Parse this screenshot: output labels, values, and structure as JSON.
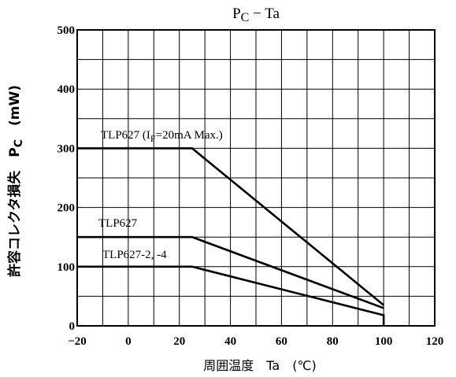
{
  "chart_data": {
    "type": "line",
    "title": "PC − Ta",
    "xlabel": "周囲温度　Ta　(℃)",
    "ylabel": "許容コレクタ損失　PC　(mW)",
    "xlim": [
      -20,
      120
    ],
    "ylim": [
      0,
      500
    ],
    "x_ticks": [
      -20,
      0,
      20,
      40,
      60,
      80,
      100,
      120
    ],
    "y_ticks": [
      0,
      100,
      200,
      300,
      400,
      500
    ],
    "grid": true,
    "series": [
      {
        "name": "TLP627 (IF=20mA Max.)",
        "x": [
          -20,
          25,
          100
        ],
        "y": [
          300,
          300,
          35
        ]
      },
      {
        "name": "TLP627",
        "x": [
          -20,
          25,
          100
        ],
        "y": [
          150,
          150,
          30
        ]
      },
      {
        "name": "TLP627-2, -4",
        "x": [
          -20,
          25,
          100,
          100
        ],
        "y": [
          100,
          100,
          18,
          0
        ]
      }
    ],
    "annotations": [
      "TLP627 (IF=20mA Max.)",
      "TLP627",
      "TLP627-2, -4"
    ]
  }
}
